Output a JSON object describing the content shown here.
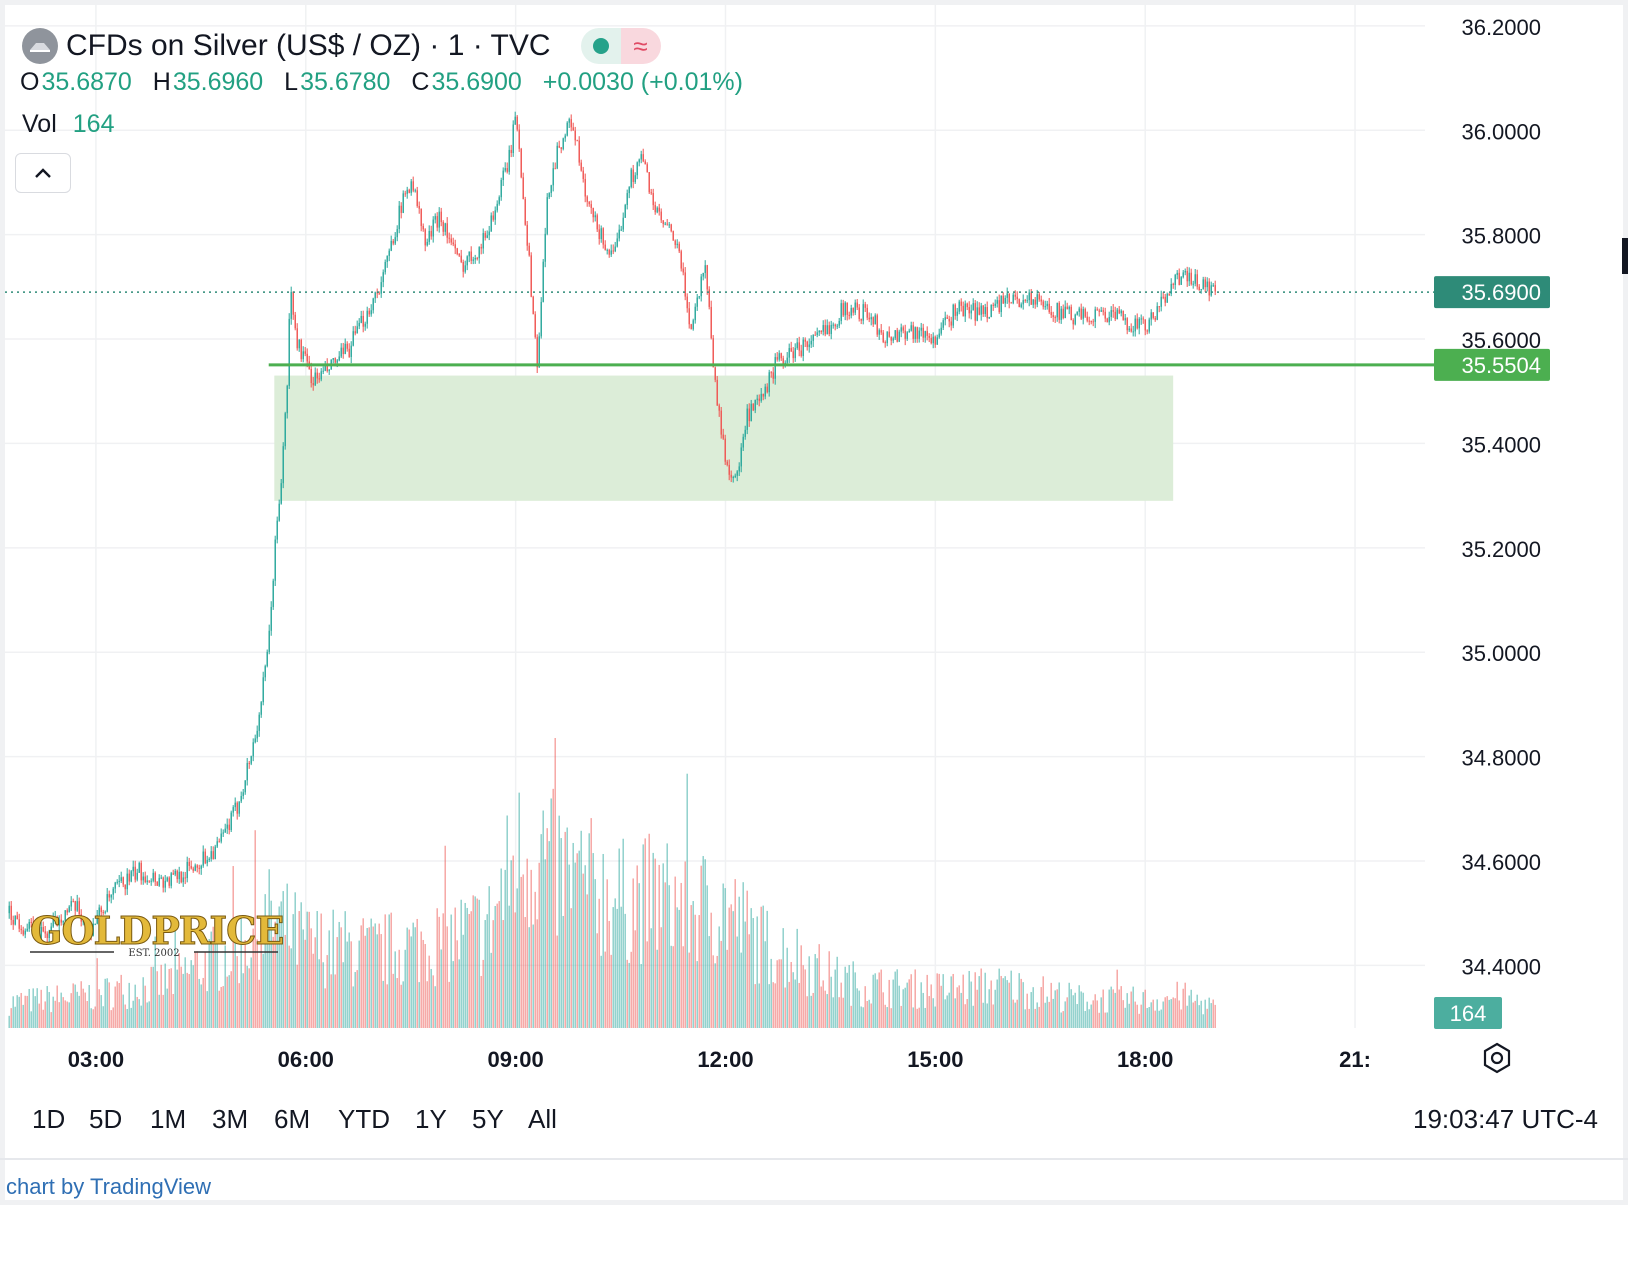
{
  "header": {
    "title": "CFDs on Silver (US$ / OZ) · 1 · TVC",
    "status_icon": "market-open-dot",
    "delay_icon": "approx-icon",
    "delay_glyph": "≈",
    "ohlc": [
      {
        "key": "O",
        "value": "35.6870"
      },
      {
        "key": "H",
        "value": "35.6960"
      },
      {
        "key": "L",
        "value": "35.6780"
      },
      {
        "key": "C",
        "value": "35.6900"
      }
    ],
    "change": "+0.0030 (+0.01%)",
    "volume_label": "Vol",
    "volume_value": "164"
  },
  "watermark": {
    "brand": "GOLDPRICE",
    "tagline": "EST. 2002"
  },
  "ranges": [
    "1D",
    "5D",
    "1M",
    "3M",
    "6M",
    "YTD",
    "1Y",
    "5Y",
    "All"
  ],
  "clock": "19:03:47 UTC-4",
  "credit": "chart by TradingView",
  "colors": {
    "up": "#26a69a",
    "down": "#ef5350",
    "level_line": "#4caf50",
    "zone_fill": "#dcedd8",
    "price_label": "#2e8b78",
    "grid": "#f0f1f3"
  },
  "chart_data": {
    "type": "candlestick",
    "title": "CFDs on Silver (US$ / OZ) · 1 · TVC",
    "y_ticks": [
      "36.2000",
      "36.0000",
      "35.8000",
      "35.6000",
      "35.4000",
      "35.2000",
      "35.0000",
      "34.8000",
      "34.6000",
      "34.4000"
    ],
    "y_range": [
      34.28,
      36.24
    ],
    "x_ticks": [
      "03:00",
      "06:00",
      "09:00",
      "12:00",
      "15:00",
      "18:00",
      "21:"
    ],
    "x_range_hours": [
      1.7,
      22.0
    ],
    "last_price": {
      "value": 35.69,
      "label": "35.6900"
    },
    "level_line": {
      "value": 35.5504,
      "label": "35.5504",
      "from_hour": 5.47
    },
    "support_zone": {
      "low": 35.29,
      "high": 35.53,
      "from_hour": 5.55,
      "to_hour": 18.4
    },
    "last_volume": {
      "value": 164,
      "label": "164"
    },
    "price_path": [
      [
        1.75,
        34.5
      ],
      [
        2.0,
        34.47
      ],
      [
        2.3,
        34.46
      ],
      [
        2.5,
        34.5
      ],
      [
        2.7,
        34.51
      ],
      [
        2.9,
        34.47
      ],
      [
        3.3,
        34.55
      ],
      [
        3.6,
        34.58
      ],
      [
        4.0,
        34.56
      ],
      [
        4.4,
        34.59
      ],
      [
        4.75,
        34.63
      ],
      [
        5.0,
        34.7
      ],
      [
        5.2,
        34.8
      ],
      [
        5.3,
        34.86
      ],
      [
        5.45,
        35.0
      ],
      [
        5.55,
        35.2
      ],
      [
        5.65,
        35.35
      ],
      [
        5.72,
        35.5
      ],
      [
        5.77,
        35.7
      ],
      [
        5.85,
        35.6
      ],
      [
        6.1,
        35.52
      ],
      [
        6.3,
        35.54
      ],
      [
        6.6,
        35.58
      ],
      [
        6.9,
        35.66
      ],
      [
        7.1,
        35.72
      ],
      [
        7.3,
        35.83
      ],
      [
        7.5,
        35.91
      ],
      [
        7.7,
        35.78
      ],
      [
        7.9,
        35.84
      ],
      [
        8.2,
        35.74
      ],
      [
        8.5,
        35.78
      ],
      [
        8.7,
        35.85
      ],
      [
        8.9,
        35.95
      ],
      [
        9.0,
        36.03
      ],
      [
        9.15,
        35.8
      ],
      [
        9.3,
        35.55
      ],
      [
        9.45,
        35.88
      ],
      [
        9.6,
        35.97
      ],
      [
        9.8,
        36.02
      ],
      [
        10.0,
        35.86
      ],
      [
        10.2,
        35.8
      ],
      [
        10.4,
        35.75
      ],
      [
        10.6,
        35.9
      ],
      [
        10.8,
        35.95
      ],
      [
        11.0,
        35.84
      ],
      [
        11.3,
        35.78
      ],
      [
        11.5,
        35.62
      ],
      [
        11.7,
        35.75
      ],
      [
        11.85,
        35.5
      ],
      [
        12.0,
        35.36
      ],
      [
        12.15,
        35.33
      ],
      [
        12.3,
        35.45
      ],
      [
        12.5,
        35.48
      ],
      [
        12.7,
        35.55
      ],
      [
        13.0,
        35.58
      ],
      [
        13.3,
        35.6
      ],
      [
        13.7,
        35.66
      ],
      [
        14.0,
        35.65
      ],
      [
        14.3,
        35.6
      ],
      [
        14.6,
        35.62
      ],
      [
        15.0,
        35.6
      ],
      [
        15.3,
        35.66
      ],
      [
        15.6,
        35.65
      ],
      [
        16.0,
        35.67
      ],
      [
        16.3,
        35.68
      ],
      [
        16.6,
        35.66
      ],
      [
        17.0,
        35.64
      ],
      [
        17.4,
        35.65
      ],
      [
        17.8,
        35.63
      ],
      [
        18.0,
        35.62
      ],
      [
        18.2,
        35.66
      ],
      [
        18.4,
        35.72
      ],
      [
        18.7,
        35.71
      ],
      [
        19.0,
        35.69
      ]
    ],
    "volume_path": [
      [
        1.75,
        0.12
      ],
      [
        3.0,
        0.16
      ],
      [
        4.0,
        0.22
      ],
      [
        5.0,
        0.38
      ],
      [
        5.5,
        0.52
      ],
      [
        6.0,
        0.4
      ],
      [
        7.0,
        0.36
      ],
      [
        8.0,
        0.42
      ],
      [
        8.6,
        0.48
      ],
      [
        9.0,
        0.8
      ],
      [
        9.3,
        0.85
      ],
      [
        9.6,
        0.74
      ],
      [
        10.0,
        0.68
      ],
      [
        10.5,
        0.6
      ],
      [
        11.0,
        0.62
      ],
      [
        11.5,
        0.58
      ],
      [
        12.0,
        0.56
      ],
      [
        12.5,
        0.4
      ],
      [
        13.0,
        0.34
      ],
      [
        13.5,
        0.24
      ],
      [
        14.0,
        0.2
      ],
      [
        15.0,
        0.18
      ],
      [
        16.0,
        0.2
      ],
      [
        17.0,
        0.14
      ],
      [
        18.0,
        0.13
      ],
      [
        18.5,
        0.15
      ],
      [
        19.0,
        0.1
      ]
    ]
  }
}
